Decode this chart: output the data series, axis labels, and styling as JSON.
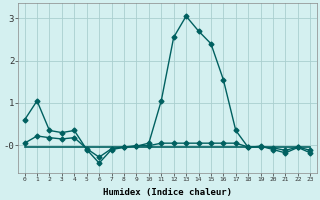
{
  "xlabel": "Humidex (Indice chaleur)",
  "background_color": "#d4f0f0",
  "grid_color": "#aacfcf",
  "line_color": "#006060",
  "x_ticks": [
    0,
    1,
    2,
    3,
    4,
    5,
    6,
    7,
    8,
    9,
    10,
    11,
    12,
    13,
    14,
    15,
    16,
    17,
    18,
    19,
    20,
    21,
    22,
    23
  ],
  "x_labels": [
    "0",
    "1",
    "2",
    "3",
    "4",
    "5",
    "6",
    "7",
    "8",
    "9",
    "10",
    "11",
    "12",
    "13",
    "14",
    "15",
    "16",
    "17",
    "18",
    "19",
    "20",
    "21",
    "22",
    "23"
  ],
  "ylim": [
    -0.65,
    3.35
  ],
  "yticks": [
    0,
    1,
    2,
    3
  ],
  "ytick_labels": [
    "-0",
    "1",
    "2",
    "3"
  ],
  "series": [
    {
      "x": [
        0,
        1,
        2,
        3,
        4,
        5,
        6,
        7,
        8,
        9,
        10,
        11,
        12,
        13,
        14,
        15,
        16,
        17,
        18,
        19,
        20,
        21,
        22,
        23
      ],
      "y": [
        0.6,
        1.05,
        0.35,
        0.3,
        0.35,
        -0.1,
        -0.42,
        -0.1,
        -0.05,
        -0.02,
        0.05,
        1.05,
        2.55,
        3.05,
        2.7,
        2.4,
        1.55,
        0.35,
        -0.05,
        -0.02,
        -0.1,
        -0.18,
        -0.05,
        -0.18
      ],
      "marker": "D",
      "markersize": 2.5,
      "linewidth": 1.0
    },
    {
      "x": [
        0,
        1,
        2,
        3,
        4,
        5,
        6,
        7,
        8,
        9,
        10,
        11,
        12,
        13,
        14,
        15,
        16,
        17,
        18,
        19,
        20,
        21,
        22,
        23
      ],
      "y": [
        0.05,
        0.22,
        0.18,
        0.15,
        0.18,
        -0.08,
        -0.28,
        -0.08,
        -0.04,
        -0.01,
        -0.01,
        0.05,
        0.05,
        0.05,
        0.05,
        0.05,
        0.05,
        0.05,
        -0.04,
        -0.04,
        -0.06,
        -0.12,
        -0.04,
        -0.12
      ],
      "marker": "D",
      "markersize": 2.5,
      "linewidth": 1.0
    },
    {
      "x": [
        0,
        1,
        2,
        3,
        4,
        5,
        6,
        7,
        8,
        9,
        10,
        11,
        12,
        13,
        14,
        15,
        16,
        17,
        18,
        19,
        20,
        21,
        22,
        23
      ],
      "y": [
        -0.04,
        -0.04,
        -0.04,
        -0.04,
        -0.04,
        -0.04,
        -0.04,
        -0.04,
        -0.04,
        -0.04,
        -0.04,
        -0.04,
        -0.04,
        -0.04,
        -0.04,
        -0.04,
        -0.04,
        -0.04,
        -0.04,
        -0.04,
        -0.04,
        -0.04,
        -0.04,
        -0.04
      ],
      "marker": null,
      "markersize": 0,
      "linewidth": 1.2
    }
  ]
}
